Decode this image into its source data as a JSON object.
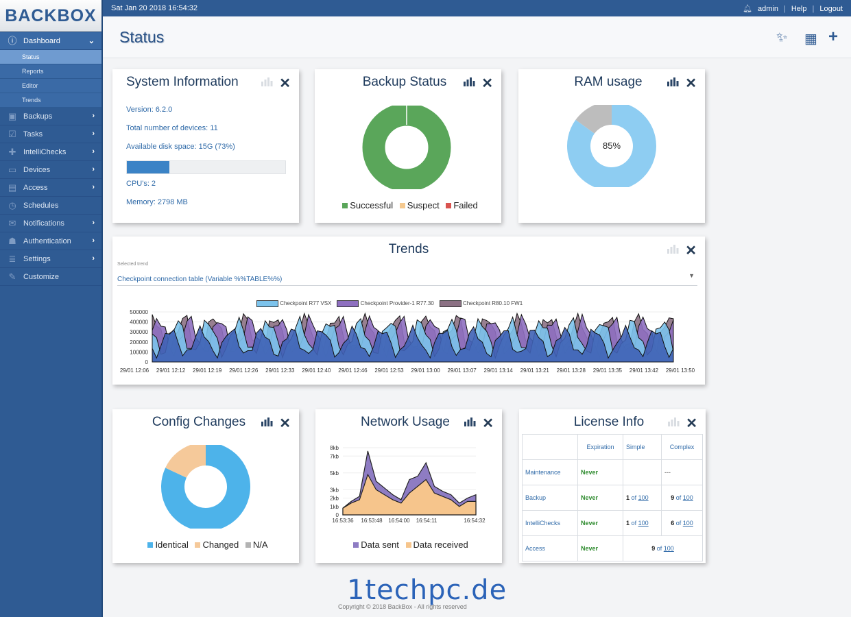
{
  "app": {
    "logo_text": "BACKBOX"
  },
  "topbar": {
    "datetime": "Sat Jan 20 2018 16:54:32",
    "user": "admin",
    "help": "Help",
    "logout": "Logout"
  },
  "page": {
    "title": "Status"
  },
  "sidebar": {
    "items": [
      {
        "label": "Dashboard",
        "icon": "info-icon",
        "active": true
      },
      {
        "label": "Backups",
        "icon": "camera-icon"
      },
      {
        "label": "Tasks",
        "icon": "checkbox-icon"
      },
      {
        "label": "IntelliChecks",
        "icon": "medkit-icon"
      },
      {
        "label": "Devices",
        "icon": "monitor-icon"
      },
      {
        "label": "Access",
        "icon": "terminal-icon"
      },
      {
        "label": "Schedules",
        "icon": "clock-icon"
      },
      {
        "label": "Notifications",
        "icon": "envelope-icon"
      },
      {
        "label": "Authentication",
        "icon": "users-icon"
      },
      {
        "label": "Settings",
        "icon": "sliders-icon"
      },
      {
        "label": "Customize",
        "icon": "wrench-icon"
      }
    ],
    "subitems": [
      "Status",
      "Reports",
      "Editor",
      "Trends"
    ]
  },
  "system_info": {
    "title": "System Information",
    "version": "Version: 6.2.0",
    "devices": "Total number of devices: 11",
    "disk": "Available disk space: 15G (73%)",
    "disk_used_fraction": 0.27,
    "cpus": "CPU's: 2",
    "memory": "Memory: 2798 MB"
  },
  "backup_status": {
    "title": "Backup Status",
    "legend": [
      "Successful",
      "Suspect",
      "Failed"
    ],
    "colors": [
      "#5aa65a",
      "#f5c98f",
      "#d9534f"
    ],
    "values": [
      100,
      0,
      0
    ]
  },
  "ram_usage": {
    "title": "RAM usage",
    "label": "85%",
    "values": [
      85,
      15
    ],
    "colors": [
      "#8ecdf2",
      "#bdbdbd"
    ]
  },
  "trends": {
    "title": "Trends",
    "selected_label": "Selected trend",
    "selected_value": "Checkpoint connection table (Variable %%TABLE%%)"
  },
  "config_changes": {
    "title": "Config Changes",
    "legend": [
      "Identical",
      "Changed",
      "N/A"
    ],
    "colors": [
      "#4db3ea",
      "#f5c99a",
      "#b3b3b3"
    ],
    "values": [
      82,
      18,
      0
    ]
  },
  "network_usage": {
    "title": "Network Usage",
    "legend": [
      "Data sent",
      "Data received"
    ],
    "colors": [
      "#8e7cc3",
      "#f6c58c"
    ]
  },
  "license": {
    "title": "License Info",
    "headers": [
      "",
      "Expiration",
      "Simple",
      "Complex"
    ],
    "rows": [
      {
        "name": "Maintenance",
        "expiration": "Never",
        "simple": "",
        "complex": "---"
      },
      {
        "name": "Backup",
        "expiration": "Never",
        "simple_n": "1",
        "simple_of": "of",
        "simple_max": "100",
        "complex_n": "9",
        "complex_of": "of",
        "complex_max": "100"
      },
      {
        "name": "IntelliChecks",
        "expiration": "Never",
        "simple_n": "1",
        "simple_of": "of",
        "simple_max": "100",
        "complex_n": "6",
        "complex_of": "of",
        "complex_max": "100"
      },
      {
        "name": "Access",
        "expiration": "Never",
        "merged_n": "9",
        "merged_of": "of",
        "merged_max": "100"
      }
    ]
  },
  "chart_data": [
    {
      "type": "area",
      "title": "",
      "series": [
        {
          "name": "Checkpoint R77 VSX",
          "color": "#7cc3ec"
        },
        {
          "name": "Checkpoint Provider-1 R77.30",
          "color": "#8e6fc0"
        },
        {
          "name": "Checkpoint R80.10 FW1",
          "color": "#8c7184"
        }
      ],
      "base_color": "#3f62b5",
      "yticks": [
        "0",
        "100000",
        "200000",
        "300000",
        "400000",
        "500000"
      ],
      "xticks": [
        "29/01 12:06",
        "29/01 12:12",
        "29/01 12:19",
        "29/01 12:26",
        "29/01 12:33",
        "29/01 12:40",
        "29/01 12:46",
        "29/01 12:53",
        "29/01 13:00",
        "29/01 13:07",
        "29/01 13:14",
        "29/01 13:21",
        "29/01 13:28",
        "29/01 13:35",
        "29/01 13:42",
        "29/01 13:50"
      ],
      "ylim": [
        0,
        500000
      ]
    },
    {
      "type": "area",
      "title": "",
      "yticks": [
        "0",
        "1kb",
        "2kb",
        "3kb",
        "5kb",
        "7kb",
        "8kb"
      ],
      "xticks": [
        "16:53:36",
        "16:53:48",
        "16:54:00",
        "16:54:11",
        "16:54:32"
      ],
      "series": [
        {
          "name": "Data sent",
          "values": [
            0.8,
            1.6,
            2.2,
            7.6,
            4.0,
            3.2,
            2.4,
            1.8,
            4.2,
            4.6,
            6.2,
            3.4,
            2.8,
            2.4,
            1.4,
            2.0,
            2.4
          ]
        },
        {
          "name": "Data received",
          "values": [
            0.8,
            1.4,
            1.8,
            4.8,
            3.0,
            2.4,
            1.8,
            1.4,
            2.6,
            3.4,
            4.2,
            2.6,
            2.2,
            1.8,
            1.0,
            1.6,
            1.6
          ]
        }
      ],
      "ylim": [
        0,
        8
      ]
    }
  ]
}
